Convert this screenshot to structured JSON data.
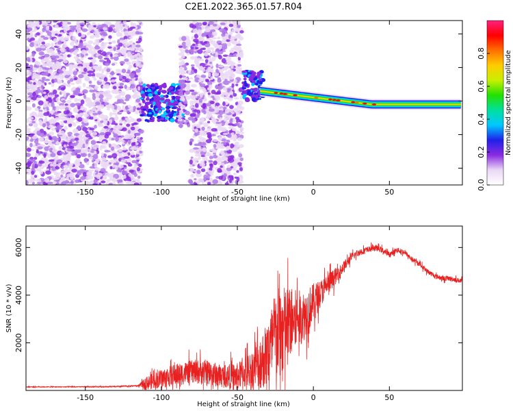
{
  "chart_data": [
    {
      "type": "heatmap",
      "title": "C2E1.2022.365.01.57.R04",
      "xlabel": "Height of straight line (km)",
      "ylabel": "Frequency (Hz)",
      "xlim": [
        -189,
        98
      ],
      "ylim": [
        -50,
        48
      ],
      "x_ticks": [
        -150,
        -100,
        -50,
        0,
        50
      ],
      "y_ticks": [
        -40,
        -20,
        0,
        20,
        40
      ],
      "grid": false,
      "colorbar": {
        "label": "Normalized spectral amplitude",
        "range": [
          0,
          1
        ],
        "ticks": [
          0.0,
          0.2,
          0.4,
          0.6,
          0.8
        ],
        "tick_labels": [
          "0.0",
          "0.2",
          "0.4",
          "0.6",
          "0.8"
        ],
        "colormap": [
          "#ffffff",
          "#ead8f5",
          "#8a2be2",
          "#2020e8",
          "#00c8ff",
          "#00e0a0",
          "#22e000",
          "#c8f000",
          "#ffcc00",
          "#ff7000",
          "#ff0000",
          "#ff2080"
        ]
      },
      "regions": [
        {
          "x": [
            -189,
            -113
          ],
          "f": [
            -50,
            48
          ],
          "amp": 0.12,
          "pattern": "speckle"
        },
        {
          "x": [
            -113,
            -84
          ],
          "f": [
            -12,
            10
          ],
          "amp": 0.25,
          "pattern": "blob"
        },
        {
          "x": [
            -88,
            -82
          ],
          "f": [
            -15,
            38
          ],
          "amp": 0.15,
          "pattern": "speckle"
        },
        {
          "x": [
            -81,
            -47
          ],
          "f": [
            -50,
            48
          ],
          "amp": 0.12,
          "pattern": "speckle"
        },
        {
          "x": [
            -46,
            -33
          ],
          "f": [
            0,
            18
          ],
          "amp": 0.25,
          "pattern": "blob"
        },
        {
          "x": [
            -35,
            97
          ],
          "f_center": [
            6,
            -2
          ],
          "f_halfwidth": 2.5,
          "amp": 0.7,
          "pattern": "band"
        }
      ]
    },
    {
      "type": "line",
      "xlabel": "Height of straight line (km)",
      "ylabel": "SNR (10 * v/v)",
      "xlim": [
        -189,
        98
      ],
      "ylim": [
        0,
        6900
      ],
      "x_ticks": [
        -150,
        -100,
        -50,
        0,
        50
      ],
      "y_ticks": [
        2000,
        4000,
        6000
      ],
      "grid": false,
      "line_color": "#e82020",
      "x": [
        -189,
        -160,
        -130,
        -115,
        -110,
        -100,
        -90,
        -80,
        -70,
        -60,
        -50,
        -40,
        -30,
        -25,
        -20,
        -15,
        -10,
        -5,
        0,
        5,
        10,
        15,
        20,
        25,
        30,
        35,
        40,
        45,
        50,
        55,
        60,
        65,
        70,
        75,
        80,
        85,
        90,
        97
      ],
      "y": [
        150,
        150,
        160,
        200,
        300,
        500,
        650,
        800,
        750,
        600,
        600,
        900,
        1500,
        2300,
        2500,
        2900,
        3000,
        3200,
        3700,
        4100,
        4500,
        4800,
        5200,
        5600,
        5800,
        5900,
        6000,
        5900,
        5700,
        5900,
        5800,
        5500,
        5300,
        5000,
        4800,
        4700,
        4700,
        4600
      ],
      "noise": [
        20,
        20,
        30,
        40,
        350,
        500,
        600,
        600,
        700,
        600,
        700,
        1000,
        1800,
        2500,
        2400,
        1800,
        1500,
        1300,
        1000,
        700,
        600,
        400,
        300,
        220,
        180,
        160,
        150,
        150,
        150,
        130,
        130,
        130,
        130,
        130,
        130,
        130,
        130,
        130
      ]
    }
  ]
}
